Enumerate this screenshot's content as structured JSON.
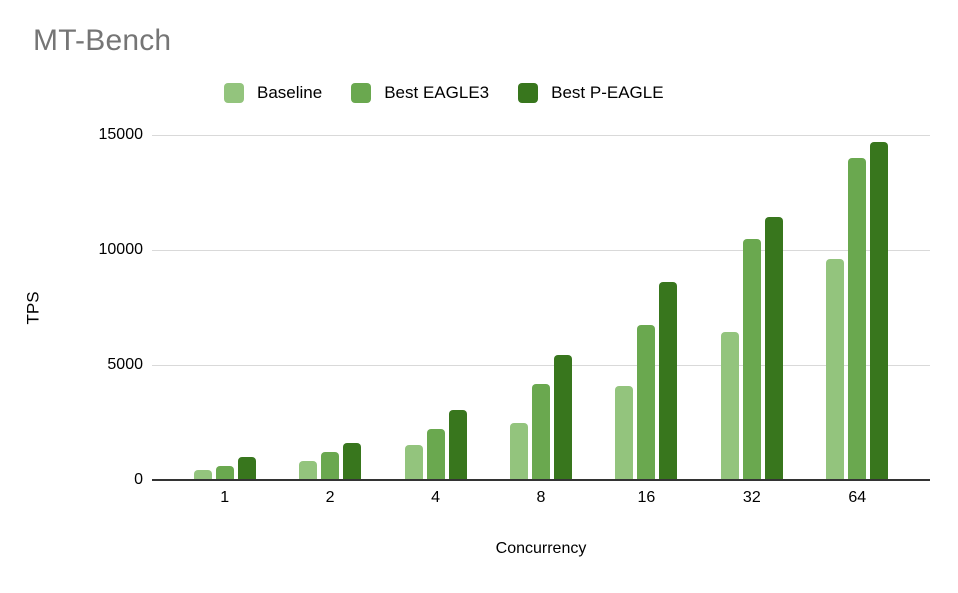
{
  "title": "MT-Bench",
  "colors": {
    "title_text": "#757575",
    "gridline": "#d9d9d9",
    "axis_line": "#333333",
    "label_text": "#000000"
  },
  "chart_data": {
    "type": "bar",
    "title": "MT-Bench",
    "xlabel": "Concurrency",
    "ylabel": "TPS",
    "categories": [
      "1",
      "2",
      "4",
      "8",
      "16",
      "32",
      "64"
    ],
    "series": [
      {
        "name": "Baseline",
        "color": "#93c47d",
        "values": [
          450,
          840,
          1540,
          2500,
          4100,
          6430,
          9630
        ]
      },
      {
        "name": "Best EAGLE3",
        "color": "#6aa84f",
        "values": [
          620,
          1230,
          2200,
          4190,
          6750,
          10500,
          14000
        ]
      },
      {
        "name": "Best P-EAGLE",
        "color": "#38761d",
        "values": [
          980,
          1600,
          3050,
          5420,
          8600,
          11450,
          14700
        ]
      }
    ],
    "ylim": [
      0,
      15000
    ],
    "yticks": [
      0,
      5000,
      10000,
      15000
    ],
    "grid": true,
    "legend_position": "top"
  }
}
